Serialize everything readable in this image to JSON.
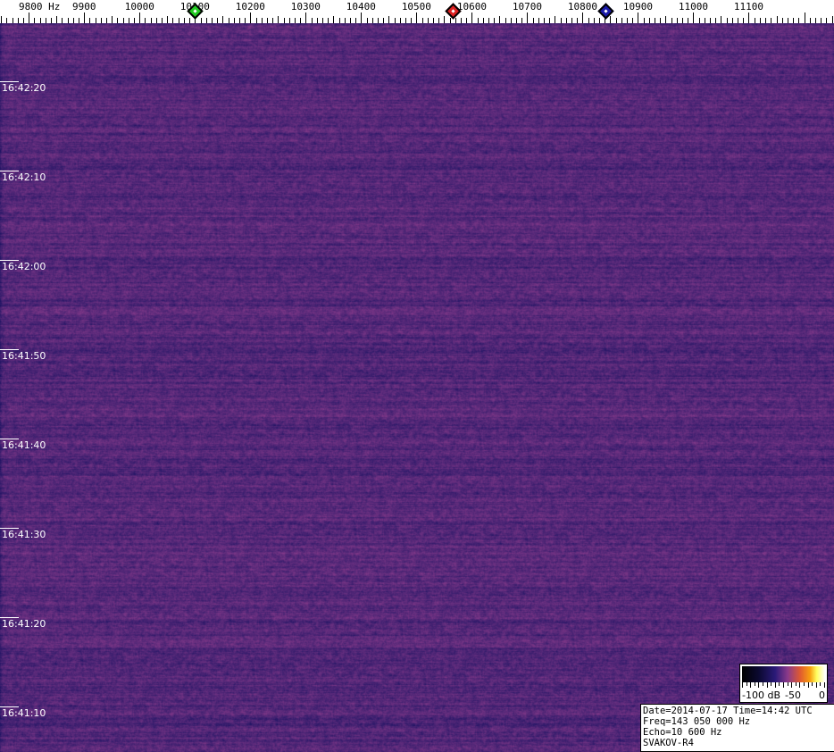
{
  "chart_data": {
    "type": "heatmap",
    "x_unit": "Hz",
    "x_tick_labels": [
      "9800 Hz",
      "9900",
      "10000",
      "10100",
      "10200",
      "10300",
      "10400",
      "10500",
      "10600",
      "10700",
      "10800",
      "10900",
      "11000",
      "11100"
    ],
    "x_ticks": [
      9800,
      9900,
      10000,
      10100,
      10200,
      10300,
      10400,
      10500,
      10600,
      10700,
      10800,
      10900,
      11000,
      11100
    ],
    "xlim": [
      9748,
      11254
    ],
    "y_tick_labels": [
      "16:42:20",
      "16:42:10",
      "16:42:00",
      "16:41:50",
      "16:41:40",
      "16:41:30",
      "16:41:20",
      "16:41:10"
    ],
    "ylim": [
      "16:42:27",
      "16:41:06"
    ],
    "markers": [
      {
        "freq": 10100,
        "color": "#22cc22"
      },
      {
        "freq": 10566,
        "color": "#dd2222"
      },
      {
        "freq": 10842,
        "color": "#1a1aaa"
      }
    ],
    "colorscale": {
      "labels": [
        "-100 dB",
        "-50",
        "0"
      ],
      "range_db": [
        -100,
        0
      ]
    },
    "background_level_db": -65,
    "colors": {
      "noise_base": "#3a2470",
      "noise_hot": "#8a3a8a",
      "noise_cold": "#221a66"
    }
  },
  "info": {
    "line1": "Date=2014-07-17 Time=14:42 UTC",
    "line2": "Freq=143 050 000 Hz",
    "line3": "Echo=10 600 Hz",
    "line4": "SVAKOV-R4"
  }
}
